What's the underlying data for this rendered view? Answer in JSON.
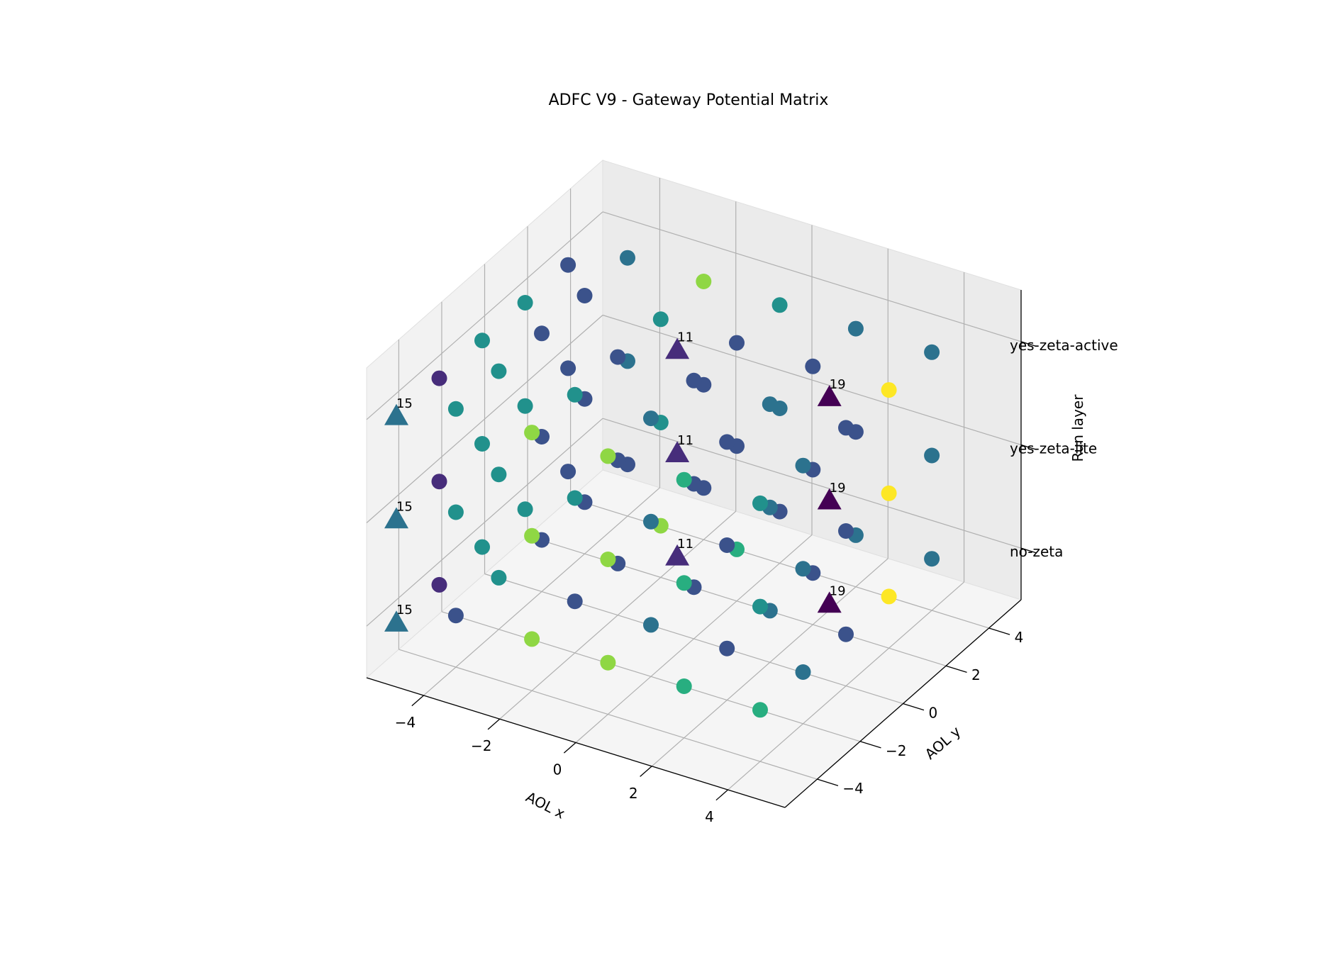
{
  "chart_data": {
    "type": "scatter",
    "projection": "3d",
    "title": "ADFC V9 - Gateway Potential Matrix",
    "xlabel": "AOL x",
    "ylabel": "AOL y",
    "zlabel": "Run layer",
    "xlim": [
      -5.5,
      5.5
    ],
    "ylim": [
      -5.5,
      5.5
    ],
    "zlim": [
      -0.5,
      2.5
    ],
    "x_ticks": [
      -4,
      -2,
      0,
      2,
      4
    ],
    "x_tick_labels": [
      "−4",
      "−2",
      "0",
      "2",
      "4"
    ],
    "y_ticks": [
      -4,
      -2,
      0,
      2,
      4
    ],
    "y_tick_labels": [
      "−4",
      "−2",
      "0",
      "2",
      "4"
    ],
    "z_ticks": [
      0,
      1,
      2
    ],
    "z_tick_labels": [
      "no-zeta",
      "yes-zeta-lite",
      "yes-zeta-active"
    ],
    "grid": true,
    "colormap": "viridis",
    "marker_colors": {
      "violet": "#472d7b",
      "deep_violet": "#440154",
      "indigo": "#3b528b",
      "blue_teal": "#2c728e",
      "teal": "#21918c",
      "green_teal": "#28ae80",
      "lime": "#8fd744",
      "yellow": "#fde725"
    },
    "series": [
      {
        "marker": "circle",
        "points": [
          {
            "x": -4,
            "y": -4,
            "z": 0,
            "color": "indigo"
          },
          {
            "x": -2,
            "y": -4,
            "z": 0,
            "color": "lime"
          },
          {
            "x": 0,
            "y": -4,
            "z": 0,
            "color": "lime"
          },
          {
            "x": 2,
            "y": -4,
            "z": 0,
            "color": "green_teal"
          },
          {
            "x": 4,
            "y": -4,
            "z": 0,
            "color": "green_teal"
          },
          {
            "x": -4,
            "y": -2,
            "z": 0,
            "color": "teal"
          },
          {
            "x": -2,
            "y": -2,
            "z": 0,
            "color": "indigo"
          },
          {
            "x": 0,
            "y": -2,
            "z": 0,
            "color": "blue_teal"
          },
          {
            "x": 2,
            "y": -2,
            "z": 0,
            "color": "indigo"
          },
          {
            "x": 4,
            "y": -2,
            "z": 0,
            "color": "blue_teal"
          },
          {
            "x": -4,
            "y": 0,
            "z": 0,
            "color": "indigo"
          },
          {
            "x": -2,
            "y": 0,
            "z": 0,
            "color": "indigo"
          },
          {
            "x": 0,
            "y": 0,
            "z": 0,
            "color": "indigo"
          },
          {
            "x": 2,
            "y": 0,
            "z": 0,
            "color": "blue_teal"
          },
          {
            "x": 4,
            "y": 0,
            "z": 0,
            "color": "indigo"
          },
          {
            "x": -4,
            "y": 2,
            "z": 0,
            "color": "indigo"
          },
          {
            "x": -2,
            "y": 2,
            "z": 0,
            "color": "lime"
          },
          {
            "x": 0,
            "y": 2,
            "z": 0,
            "color": "green_teal"
          },
          {
            "x": 2,
            "y": 2,
            "z": 0,
            "color": "indigo"
          },
          {
            "x": 4,
            "y": 2,
            "z": 0,
            "color": "yellow"
          },
          {
            "x": -4,
            "y": 4,
            "z": 0,
            "color": "indigo"
          },
          {
            "x": -2,
            "y": 4,
            "z": 0,
            "color": "indigo"
          },
          {
            "x": 0,
            "y": 4,
            "z": 0,
            "color": "indigo"
          },
          {
            "x": 2,
            "y": 4,
            "z": 0,
            "color": "blue_teal"
          },
          {
            "x": 4,
            "y": 4,
            "z": 0,
            "color": "blue_teal"
          },
          {
            "x": -5,
            "y": -3,
            "z": 0,
            "color": "violet"
          },
          {
            "x": -5,
            "y": -1,
            "z": 0,
            "color": "teal"
          },
          {
            "x": -5,
            "y": 1,
            "z": 0,
            "color": "teal"
          },
          {
            "x": -5,
            "y": 3,
            "z": 0,
            "color": "indigo"
          },
          {
            "x": -4,
            "y": -4,
            "z": 1,
            "color": "teal"
          },
          {
            "x": -2,
            "y": -4,
            "z": 1,
            "color": "lime"
          },
          {
            "x": 0,
            "y": -4,
            "z": 1,
            "color": "lime"
          },
          {
            "x": 2,
            "y": -4,
            "z": 1,
            "color": "green_teal"
          },
          {
            "x": 4,
            "y": -4,
            "z": 1,
            "color": "teal"
          },
          {
            "x": -4,
            "y": -2,
            "z": 1,
            "color": "teal"
          },
          {
            "x": -2,
            "y": -2,
            "z": 1,
            "color": "teal"
          },
          {
            "x": 0,
            "y": -2,
            "z": 1,
            "color": "blue_teal"
          },
          {
            "x": 2,
            "y": -2,
            "z": 1,
            "color": "indigo"
          },
          {
            "x": 4,
            "y": -2,
            "z": 1,
            "color": "blue_teal"
          },
          {
            "x": -4,
            "y": 0,
            "z": 1,
            "color": "indigo"
          },
          {
            "x": -2,
            "y": 0,
            "z": 1,
            "color": "indigo"
          },
          {
            "x": 0,
            "y": 0,
            "z": 1,
            "color": "indigo"
          },
          {
            "x": 2,
            "y": 0,
            "z": 1,
            "color": "blue_teal"
          },
          {
            "x": 4,
            "y": 0,
            "z": 1,
            "color": "indigo"
          },
          {
            "x": -4,
            "y": 2,
            "z": 1,
            "color": "indigo"
          },
          {
            "x": -2,
            "y": 2,
            "z": 1,
            "color": "teal"
          },
          {
            "x": 0,
            "y": 2,
            "z": 1,
            "color": "indigo"
          },
          {
            "x": 2,
            "y": 2,
            "z": 1,
            "color": "indigo"
          },
          {
            "x": 4,
            "y": 2,
            "z": 1,
            "color": "yellow"
          },
          {
            "x": -4,
            "y": 4,
            "z": 1,
            "color": "blue_teal"
          },
          {
            "x": -2,
            "y": 4,
            "z": 1,
            "color": "indigo"
          },
          {
            "x": 0,
            "y": 4,
            "z": 1,
            "color": "blue_teal"
          },
          {
            "x": 2,
            "y": 4,
            "z": 1,
            "color": "indigo"
          },
          {
            "x": 4,
            "y": 4,
            "z": 1,
            "color": "blue_teal"
          },
          {
            "x": -5,
            "y": -3,
            "z": 1,
            "color": "violet"
          },
          {
            "x": -5,
            "y": -1,
            "z": 1,
            "color": "teal"
          },
          {
            "x": -5,
            "y": 1,
            "z": 1,
            "color": "teal"
          },
          {
            "x": -5,
            "y": 3,
            "z": 1,
            "color": "indigo"
          },
          {
            "x": -4,
            "y": -4,
            "z": 2,
            "color": "teal"
          },
          {
            "x": -2,
            "y": -4,
            "z": 2,
            "color": "lime"
          },
          {
            "x": 0,
            "y": -4,
            "z": 2,
            "color": "lime"
          },
          {
            "x": 2,
            "y": -4,
            "z": 2,
            "color": "green_teal"
          },
          {
            "x": 4,
            "y": -4,
            "z": 2,
            "color": "teal"
          },
          {
            "x": -4,
            "y": -2,
            "z": 2,
            "color": "teal"
          },
          {
            "x": -2,
            "y": -2,
            "z": 2,
            "color": "teal"
          },
          {
            "x": 0,
            "y": -2,
            "z": 2,
            "color": "blue_teal"
          },
          {
            "x": 2,
            "y": -2,
            "z": 2,
            "color": "indigo"
          },
          {
            "x": 4,
            "y": -2,
            "z": 2,
            "color": "blue_teal"
          },
          {
            "x": -4,
            "y": 0,
            "z": 2,
            "color": "indigo"
          },
          {
            "x": -2,
            "y": 0,
            "z": 2,
            "color": "indigo"
          },
          {
            "x": 0,
            "y": 0,
            "z": 2,
            "color": "indigo"
          },
          {
            "x": 2,
            "y": 0,
            "z": 2,
            "color": "blue_teal"
          },
          {
            "x": 4,
            "y": 0,
            "z": 2,
            "color": "indigo"
          },
          {
            "x": -4,
            "y": 2,
            "z": 2,
            "color": "indigo"
          },
          {
            "x": -2,
            "y": 2,
            "z": 2,
            "color": "teal"
          },
          {
            "x": 0,
            "y": 2,
            "z": 2,
            "color": "indigo"
          },
          {
            "x": 2,
            "y": 2,
            "z": 2,
            "color": "indigo"
          },
          {
            "x": 4,
            "y": 2,
            "z": 2,
            "color": "yellow"
          },
          {
            "x": -4,
            "y": 4,
            "z": 2,
            "color": "blue_teal"
          },
          {
            "x": -2,
            "y": 4,
            "z": 2,
            "color": "lime"
          },
          {
            "x": 0,
            "y": 4,
            "z": 2,
            "color": "teal"
          },
          {
            "x": 2,
            "y": 4,
            "z": 2,
            "color": "blue_teal"
          },
          {
            "x": 4,
            "y": 4,
            "z": 2,
            "color": "blue_teal"
          },
          {
            "x": -5,
            "y": -3,
            "z": 2,
            "color": "violet"
          },
          {
            "x": -5,
            "y": -1,
            "z": 2,
            "color": "teal"
          },
          {
            "x": -5,
            "y": 1,
            "z": 2,
            "color": "teal"
          },
          {
            "x": -5,
            "y": 3,
            "z": 2,
            "color": "indigo"
          }
        ]
      },
      {
        "marker": "triangle",
        "points": [
          {
            "x": -5,
            "y": -5,
            "z": 0,
            "color": "blue_teal",
            "label": "15"
          },
          {
            "x": -1,
            "y": 1,
            "z": 0,
            "color": "violet",
            "label": "11"
          },
          {
            "x": 3,
            "y": 1,
            "z": 0,
            "color": "deep_violet",
            "label": "19"
          },
          {
            "x": -5,
            "y": -5,
            "z": 1,
            "color": "blue_teal",
            "label": "15"
          },
          {
            "x": -1,
            "y": 1,
            "z": 1,
            "color": "violet",
            "label": "11"
          },
          {
            "x": 3,
            "y": 1,
            "z": 1,
            "color": "deep_violet",
            "label": "19"
          },
          {
            "x": -5,
            "y": -5,
            "z": 2,
            "color": "blue_teal",
            "label": "15"
          },
          {
            "x": -1,
            "y": 1,
            "z": 2,
            "color": "violet",
            "label": "11"
          },
          {
            "x": 3,
            "y": 1,
            "z": 2,
            "color": "deep_violet",
            "label": "19"
          }
        ]
      }
    ]
  }
}
